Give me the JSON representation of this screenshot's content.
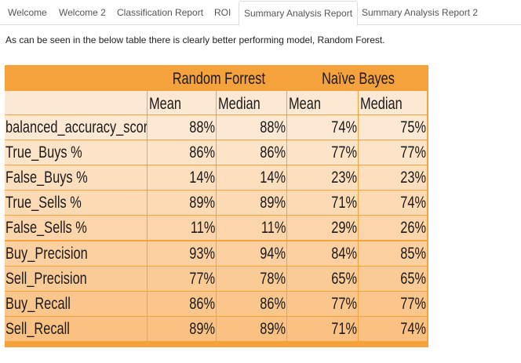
{
  "tabs": [
    {
      "label": "Welcome",
      "active": false
    },
    {
      "label": "Welcome 2",
      "active": false
    },
    {
      "label": "Classification Report",
      "active": false
    },
    {
      "label": "ROI",
      "active": false
    },
    {
      "label": "Summary Analysis Report",
      "active": true
    },
    {
      "label": "Summary Analysis Report 2",
      "active": false
    }
  ],
  "intro_text": "As can be seen in the below table there is clearly better performing model, Random Forest.",
  "report_table": {
    "group_headers": [
      "Random Forrest",
      "Naïve Bayes"
    ],
    "sub_headers": [
      "Mean",
      "Median",
      "Mean",
      "Median"
    ],
    "rows": [
      {
        "metric": "balanced_accuracy_score",
        "values": [
          "88%",
          "88%",
          "74%",
          "75%"
        ]
      },
      {
        "metric": "True_Buys %",
        "values": [
          "86%",
          "86%",
          "77%",
          "77%"
        ]
      },
      {
        "metric": "False_Buys %",
        "values": [
          "14%",
          "14%",
          "23%",
          "23%"
        ]
      },
      {
        "metric": "True_Sells %",
        "values": [
          "89%",
          "89%",
          "71%",
          "74%"
        ]
      },
      {
        "metric": "False_Sells %",
        "values": [
          "11%",
          "11%",
          "29%",
          "26%"
        ]
      },
      {
        "metric": "Buy_Precision",
        "values": [
          "93%",
          "94%",
          "84%",
          "85%"
        ]
      },
      {
        "metric": "Sell_Precision",
        "values": [
          "77%",
          "78%",
          "65%",
          "65%"
        ]
      },
      {
        "metric": "Buy_Recall",
        "values": [
          "86%",
          "86%",
          "77%",
          "77%"
        ]
      },
      {
        "metric": "Sell_Recall",
        "values": [
          "89%",
          "89%",
          "71%",
          "74%"
        ]
      }
    ],
    "colors": {
      "header": "#f5a13c",
      "grid": "#f5a13c",
      "row_shades": [
        "#fde9d3",
        "#fde4c8",
        "#fddfbe",
        "#fcdab4",
        "#fcd5aa",
        "#fcd0a0",
        "#fbcb96",
        "#fbc68c",
        "#fbc182"
      ]
    }
  }
}
